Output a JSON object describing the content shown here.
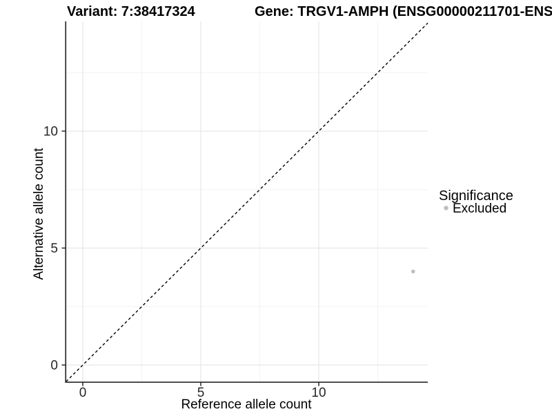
{
  "titles": {
    "variant": "Variant: 7:38417324",
    "gene": "Gene: TRGV1-AMPH (ENSG00000211701-ENS"
  },
  "axes": {
    "x": {
      "label": "Reference allele count",
      "tick_labels": [
        "0",
        "5",
        "10"
      ]
    },
    "y": {
      "label": "Alternative allele count",
      "tick_labels": [
        "0",
        "5",
        "10"
      ]
    }
  },
  "legend": {
    "title": "Significance",
    "items": [
      {
        "label": "Excluded",
        "color": "#bebebe"
      }
    ]
  },
  "chart_data": {
    "type": "scatter",
    "title": "Variant: 7:38417324    Gene: TRGV1-AMPH (ENSG00000211701-ENS",
    "xlabel": "Reference allele count",
    "ylabel": "Alternative allele count",
    "x_ticks": [
      0,
      5,
      10
    ],
    "y_ticks": [
      0,
      5,
      10
    ],
    "xlim": [
      -0.73,
      14.62
    ],
    "ylim": [
      -0.71,
      14.7
    ],
    "grid": {
      "major": [
        0,
        5,
        10
      ],
      "minor": [
        2.5,
        7.5,
        12.5
      ],
      "major_color": "#e7e7e7",
      "minor_color": "#f2f2f2"
    },
    "reference_line": {
      "type": "identity",
      "slope": 1,
      "intercept": 0,
      "style": "dashed",
      "color": "#000000"
    },
    "series": [
      {
        "name": "Excluded",
        "color": "#bebebe",
        "points": [
          [
            14,
            4
          ]
        ]
      }
    ],
    "legend_position": "right"
  },
  "colors": {
    "axis": "#333333",
    "point": "#bebebe",
    "background": "#ffffff"
  }
}
